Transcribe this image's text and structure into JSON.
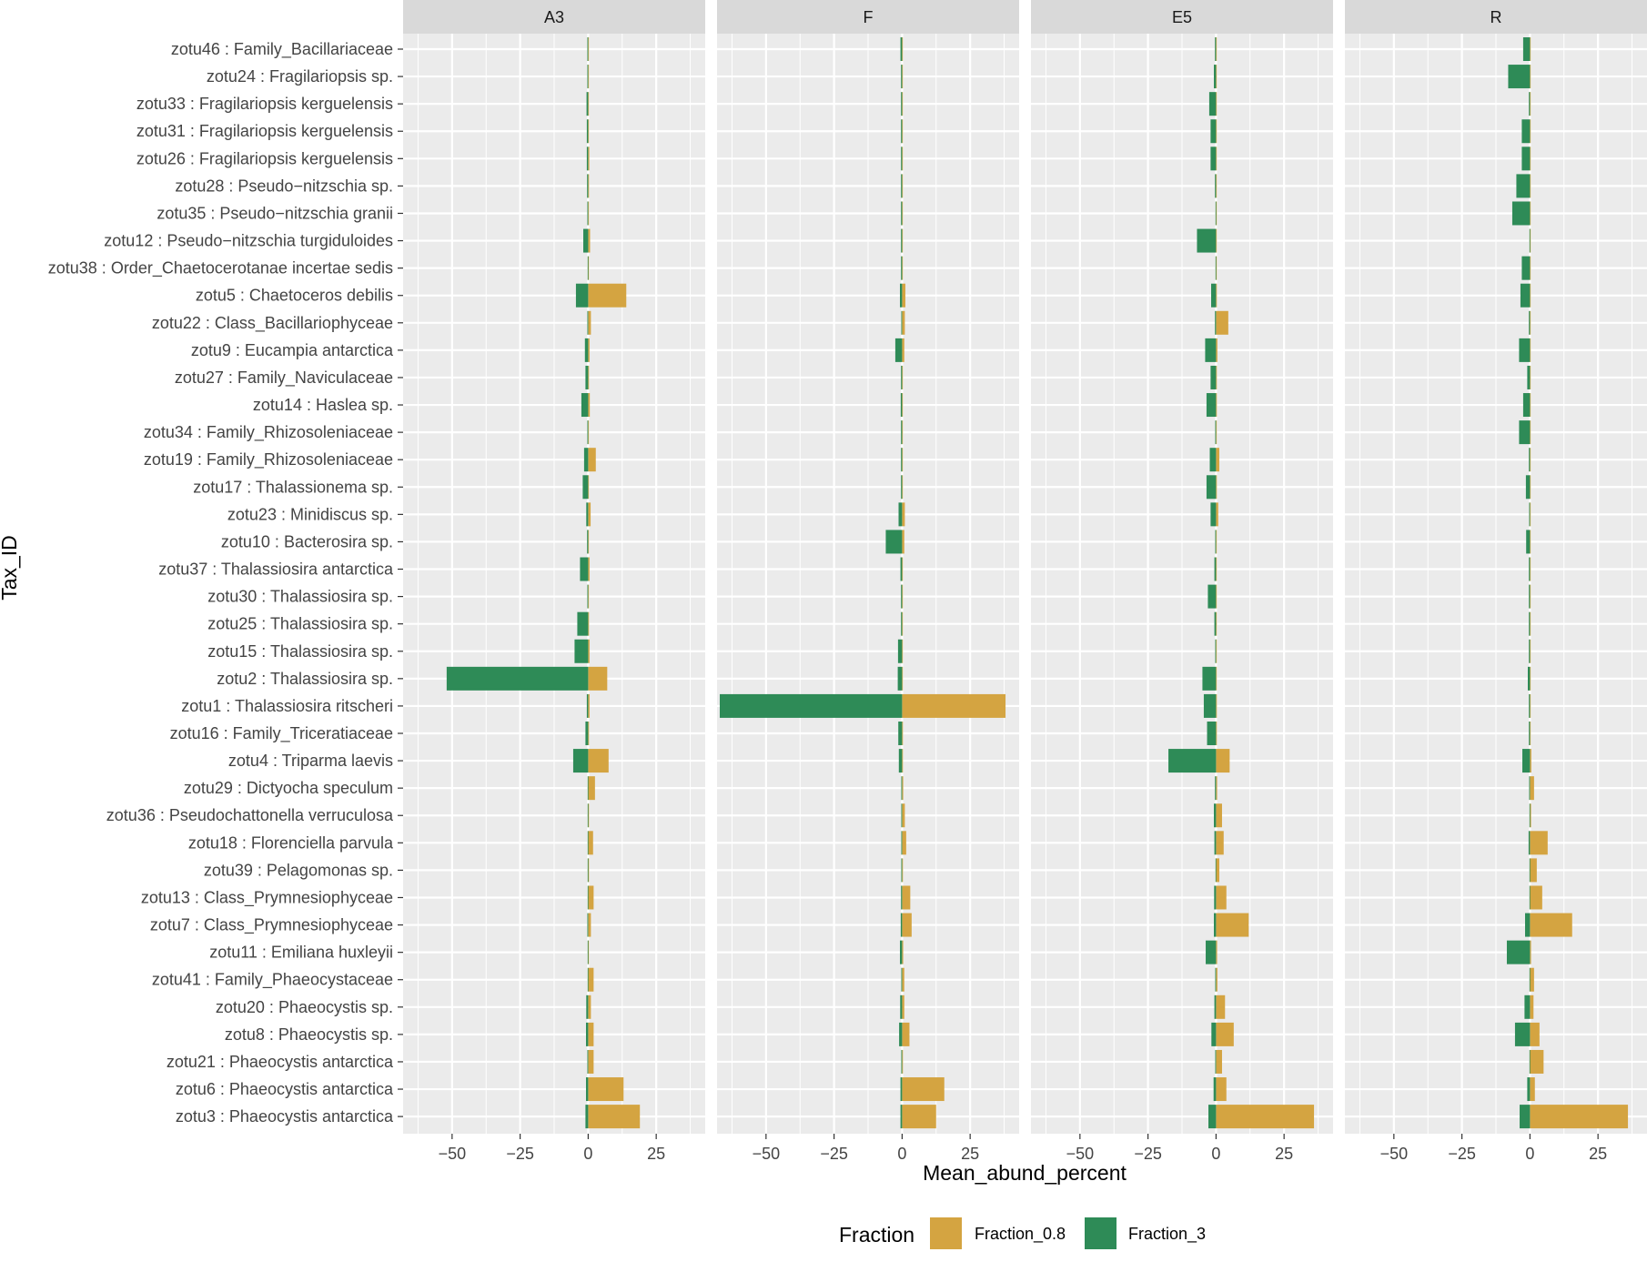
{
  "chart_data": {
    "type": "bar",
    "orientation": "horizontal",
    "xlabel": "Mean_abund_percent",
    "ylabel": "Tax_ID",
    "xlim": [
      -68,
      43
    ],
    "xticks": [
      -50,
      -25,
      0,
      25
    ],
    "facets": [
      "A3",
      "F",
      "E5",
      "R"
    ],
    "categories": [
      "zotu46 : Family_Bacillariaceae",
      "zotu24 : Fragilariopsis sp.",
      "zotu33 : Fragilariopsis kerguelensis",
      "zotu31 : Fragilariopsis kerguelensis",
      "zotu26 : Fragilariopsis kerguelensis",
      "zotu28 : Pseudo−nitzschia  sp.",
      "zotu35 : Pseudo−nitzschia  granii",
      "zotu12 : Pseudo−nitzschia  turgiduloides",
      "zotu38 : Order_Chaetocerotanae incertae sedis",
      "zotu5 : Chaetoceros debilis",
      "zotu22 : Class_Bacillariophyceae",
      "zotu9 : Eucampia antarctica",
      "zotu27 : Family_Naviculaceae",
      "zotu14 : Haslea sp.",
      "zotu34 : Family_Rhizosoleniaceae",
      "zotu19 : Family_Rhizosoleniaceae",
      "zotu17 : Thalassionema sp.",
      "zotu23 : Minidiscus sp.",
      "zotu10 : Bacterosira sp.",
      "zotu37 : Thalassiosira antarctica",
      "zotu30 : Thalassiosira sp.",
      "zotu25 : Thalassiosira sp.",
      "zotu15 : Thalassiosira sp.",
      "zotu2 : Thalassiosira sp.",
      "zotu1 : Thalassiosira ritscheri",
      "zotu16 : Family_Triceratiaceae",
      "zotu4 : Triparma laevis",
      "zotu29 : Dictyocha speculum",
      "zotu36 : Pseudochattonella verruculosa",
      "zotu18 : Florenciella parvula",
      "zotu39 : Pelagomonas sp.",
      "zotu13 : Class_Prymnesiophyceae",
      "zotu7 : Class_Prymnesiophyceae",
      "zotu11 : Emiliana huxleyii",
      "zotu41 : Family_Phaeocystaceae",
      "zotu20 : Phaeocystis sp.",
      "zotu8 : Phaeocystis sp.",
      "zotu21 : Phaeocystis antarctica",
      "zotu6 : Phaeocystis antarctica",
      "zotu3 : Phaeocystis antarctica"
    ],
    "series": [
      {
        "name": "Fraction_0.8",
        "color": "#D4A441",
        "facet_values": {
          "A3": [
            0.2,
            0.2,
            0.1,
            0.2,
            0.4,
            0.3,
            0.2,
            0.7,
            0.2,
            14,
            1,
            0.5,
            0.3,
            0.6,
            0.2,
            2.8,
            0.2,
            0.9,
            0.2,
            0.5,
            0.2,
            0.3,
            0.5,
            7,
            0.5,
            0.3,
            7.5,
            2.5,
            0.3,
            1.8,
            0.3,
            2,
            1,
            0.2,
            2,
            1,
            2,
            2,
            13,
            19
          ],
          "F": [
            0.2,
            0.2,
            0.2,
            0.2,
            0.2,
            0.2,
            0.2,
            0.2,
            0.2,
            1.2,
            1,
            0.8,
            0.2,
            0.2,
            0.2,
            0.2,
            0.2,
            1,
            0.8,
            0.2,
            0.2,
            0.2,
            0.2,
            0.2,
            38,
            0.3,
            0.3,
            0.4,
            1,
            1.5,
            0.3,
            3,
            3.5,
            0.4,
            0.8,
            0.8,
            2.7,
            0.3,
            15.5,
            12.5
          ],
          "E5": [
            0.2,
            0.2,
            0.2,
            0.2,
            0.2,
            0.2,
            0.2,
            0.2,
            0.2,
            0.3,
            4.5,
            0.5,
            0.3,
            0.3,
            0.2,
            1.2,
            0.3,
            0.8,
            0.2,
            0.2,
            0.2,
            0.2,
            0.2,
            0.2,
            0.3,
            0.3,
            5,
            0.4,
            2.2,
            2.8,
            1.2,
            3.8,
            12,
            0.4,
            0.5,
            3.3,
            6.5,
            2.2,
            3.8,
            36
          ],
          "R": [
            0.2,
            0.2,
            0.2,
            0.2,
            0.2,
            0.2,
            0.2,
            0.2,
            0.2,
            0.2,
            0.2,
            0.2,
            0.2,
            0.2,
            0.2,
            0.2,
            0.2,
            0.2,
            0.2,
            0.2,
            0.2,
            0.2,
            0.2,
            0.2,
            0.2,
            0.2,
            0.5,
            1.5,
            0.4,
            6.5,
            2.5,
            4.5,
            15.5,
            0.4,
            1.5,
            1.3,
            3.5,
            5,
            1.8,
            36
          ]
        }
      },
      {
        "name": "Fraction_3",
        "color": "#2E8B57",
        "facet_values": {
          "A3": [
            -0.3,
            -0.3,
            -0.6,
            -0.5,
            -0.5,
            -0.4,
            -0.3,
            -1.8,
            -0.2,
            -4.5,
            -0.3,
            -1.2,
            -1,
            -2.5,
            -0.3,
            -1.5,
            -2,
            -0.7,
            -0.4,
            -3,
            -0.3,
            -4,
            -5,
            -52,
            -0.5,
            -1,
            -5.5,
            -0.2,
            -0.2,
            -0.2,
            -0.2,
            -0.2,
            -0.3,
            -0.2,
            -0.2,
            -0.7,
            -0.8,
            -0.3,
            -0.8,
            -1
          ],
          "F": [
            -0.6,
            -0.4,
            -0.4,
            -0.4,
            -0.4,
            -0.4,
            -0.4,
            -0.4,
            -0.4,
            -0.8,
            -0.3,
            -2.5,
            -0.4,
            -0.5,
            -0.4,
            -0.4,
            -0.4,
            -1.3,
            -6,
            -0.6,
            -0.4,
            -0.4,
            -1.5,
            -1.6,
            -67,
            -1.4,
            -1.2,
            -0.3,
            -0.3,
            -0.3,
            -0.3,
            -0.4,
            -0.5,
            -0.8,
            -0.3,
            -0.7,
            -1.1,
            -0.3,
            -0.6,
            -0.6
          ],
          "E5": [
            -0.4,
            -0.8,
            -2.5,
            -2,
            -2,
            -0.4,
            -0.2,
            -7,
            -0.2,
            -1.8,
            -0.4,
            -4,
            -2,
            -3.5,
            -0.3,
            -2.3,
            -3.5,
            -2,
            -0.3,
            -0.6,
            -3,
            -0.6,
            -0.3,
            -5,
            -4.5,
            -3.3,
            -17.5,
            -0.4,
            -0.8,
            -0.6,
            -0.2,
            -0.7,
            -0.8,
            -3.8,
            -0.3,
            -0.6,
            -1.7,
            -0.3,
            -0.9,
            -2.8
          ],
          "R": [
            -2.5,
            -8,
            -0.4,
            -3,
            -3,
            -5,
            -6.5,
            -0.2,
            -3,
            -3.5,
            -0.4,
            -4,
            -1,
            -2.5,
            -4,
            -0.4,
            -1.5,
            -0.3,
            -1.4,
            -0.4,
            -0.4,
            -0.4,
            -0.4,
            -0.8,
            -0.4,
            -0.4,
            -2.8,
            -0.3,
            -0.2,
            -0.5,
            -0.2,
            -0.2,
            -1.8,
            -8.5,
            -0.2,
            -2,
            -5.5,
            -0.2,
            -1,
            -3.8
          ]
        }
      }
    ],
    "legend": {
      "title": "Fraction",
      "position": "bottom"
    },
    "panel_background": "#EBEBEB",
    "strip_background": "#D9D9D9",
    "grid": true
  }
}
